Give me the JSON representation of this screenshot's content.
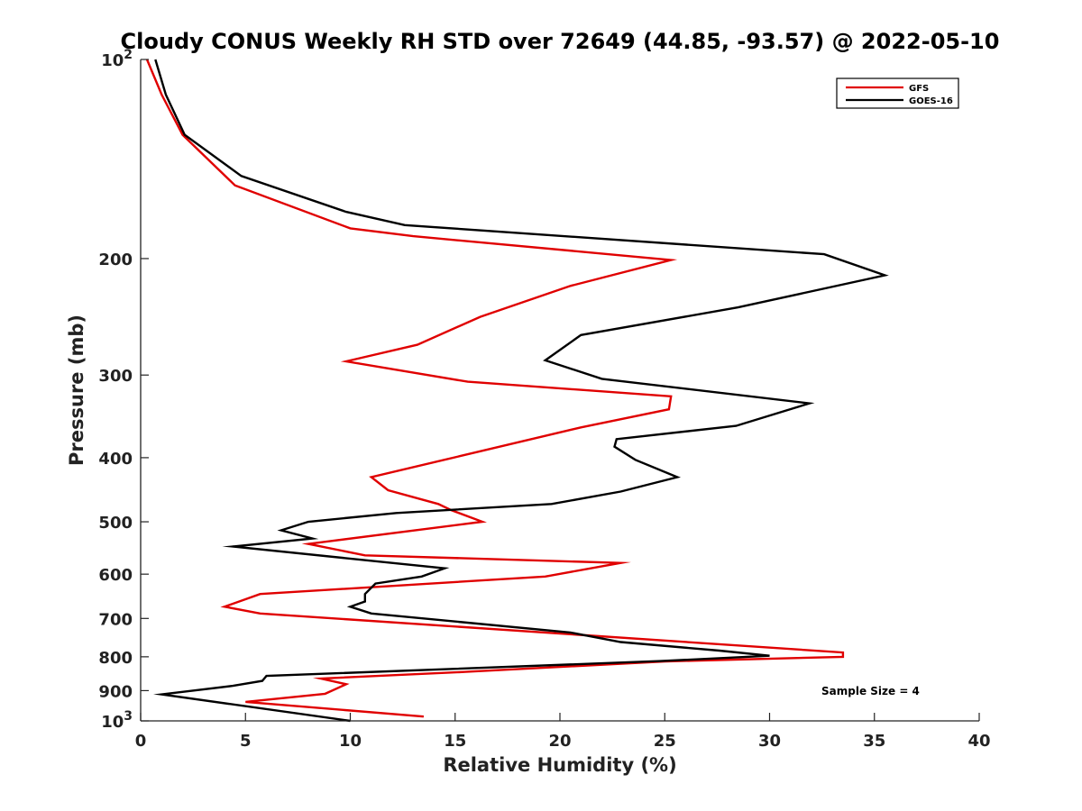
{
  "chart_data": {
    "type": "line",
    "title": "Cloudy CONUS Weekly RH STD over 72649 (44.85, -93.57) @ 2022-05-10",
    "xlabel": "Relative Humidity (%)",
    "ylabel": "Pressure (mb)",
    "xlim": [
      0,
      40
    ],
    "ylim": [
      100,
      1000
    ],
    "y_scale": "log",
    "y_reversed": true,
    "x_ticks": [
      0,
      5,
      10,
      15,
      20,
      25,
      30,
      35,
      40
    ],
    "x_tick_labels": [
      "0",
      "5",
      "10",
      "15",
      "20",
      "25",
      "30",
      "35",
      "40"
    ],
    "y_ticks": [
      100,
      200,
      300,
      400,
      500,
      600,
      700,
      800,
      900,
      1000
    ],
    "y_tick_labels": [
      {
        "base": "10",
        "exp": "2"
      },
      {
        "base": "200",
        "exp": ""
      },
      {
        "base": "300",
        "exp": ""
      },
      {
        "base": "400",
        "exp": ""
      },
      {
        "base": "500",
        "exp": ""
      },
      {
        "base": "600",
        "exp": ""
      },
      {
        "base": "700",
        "exp": ""
      },
      {
        "base": "800",
        "exp": ""
      },
      {
        "base": "900",
        "exp": ""
      },
      {
        "base": "10",
        "exp": "3"
      }
    ],
    "grid": false,
    "legend_position": "top-right",
    "annotation": "Sample Size = 4",
    "series": [
      {
        "name": "GFS",
        "color": "#e00000",
        "points": [
          [
            0.3,
            100
          ],
          [
            1.0,
            113
          ],
          [
            2.0,
            130
          ],
          [
            4.5,
            155
          ],
          [
            10.0,
            180
          ],
          [
            13.0,
            185
          ],
          [
            25.3,
            201
          ],
          [
            20.5,
            220
          ],
          [
            16.2,
            245
          ],
          [
            13.2,
            270
          ],
          [
            9.8,
            286
          ],
          [
            15.6,
            307
          ],
          [
            25.3,
            323
          ],
          [
            25.2,
            338
          ],
          [
            21.0,
            360
          ],
          [
            11.0,
            428
          ],
          [
            11.8,
            448
          ],
          [
            14.2,
            470
          ],
          [
            14.8,
            480
          ],
          [
            16.3,
            500
          ],
          [
            8.0,
            540
          ],
          [
            10.7,
            562
          ],
          [
            22.9,
            577
          ],
          [
            19.3,
            605
          ],
          [
            5.7,
            643
          ],
          [
            4.7,
            660
          ],
          [
            4.0,
            672
          ],
          [
            5.7,
            688
          ],
          [
            33.5,
            788
          ],
          [
            33.5,
            800
          ],
          [
            25.0,
            813
          ],
          [
            15.5,
            843
          ],
          [
            8.6,
            863
          ],
          [
            9.8,
            880
          ],
          [
            8.8,
            910
          ],
          [
            5.0,
            936
          ],
          [
            13.5,
            985
          ]
        ]
      },
      {
        "name": "GOES-16",
        "color": "#000000",
        "points": [
          [
            0.7,
            100
          ],
          [
            1.2,
            113
          ],
          [
            2.1,
            130
          ],
          [
            4.8,
            150
          ],
          [
            9.8,
            170
          ],
          [
            12.6,
            178
          ],
          [
            32.6,
            197
          ],
          [
            35.5,
            212
          ],
          [
            28.5,
            237
          ],
          [
            21.0,
            261
          ],
          [
            19.3,
            285
          ],
          [
            22.0,
            304
          ],
          [
            31.9,
            331
          ],
          [
            28.4,
            358
          ],
          [
            22.7,
            375
          ],
          [
            22.6,
            385
          ],
          [
            23.6,
            403
          ],
          [
            25.6,
            428
          ],
          [
            22.9,
            450
          ],
          [
            19.6,
            470
          ],
          [
            12.2,
            485
          ],
          [
            8.0,
            500
          ],
          [
            6.7,
            515
          ],
          [
            8.2,
            530
          ],
          [
            4.4,
            545
          ],
          [
            14.5,
            588
          ],
          [
            13.4,
            605
          ],
          [
            11.2,
            620
          ],
          [
            10.7,
            643
          ],
          [
            10.7,
            660
          ],
          [
            10.0,
            672
          ],
          [
            11.0,
            688
          ],
          [
            20.5,
            735
          ],
          [
            22.9,
            760
          ],
          [
            27.6,
            783
          ],
          [
            30.0,
            797
          ],
          [
            24.8,
            812
          ],
          [
            6.0,
            855
          ],
          [
            5.8,
            870
          ],
          [
            4.4,
            885
          ],
          [
            1.0,
            912
          ],
          [
            10.0,
            1000
          ]
        ]
      }
    ]
  }
}
